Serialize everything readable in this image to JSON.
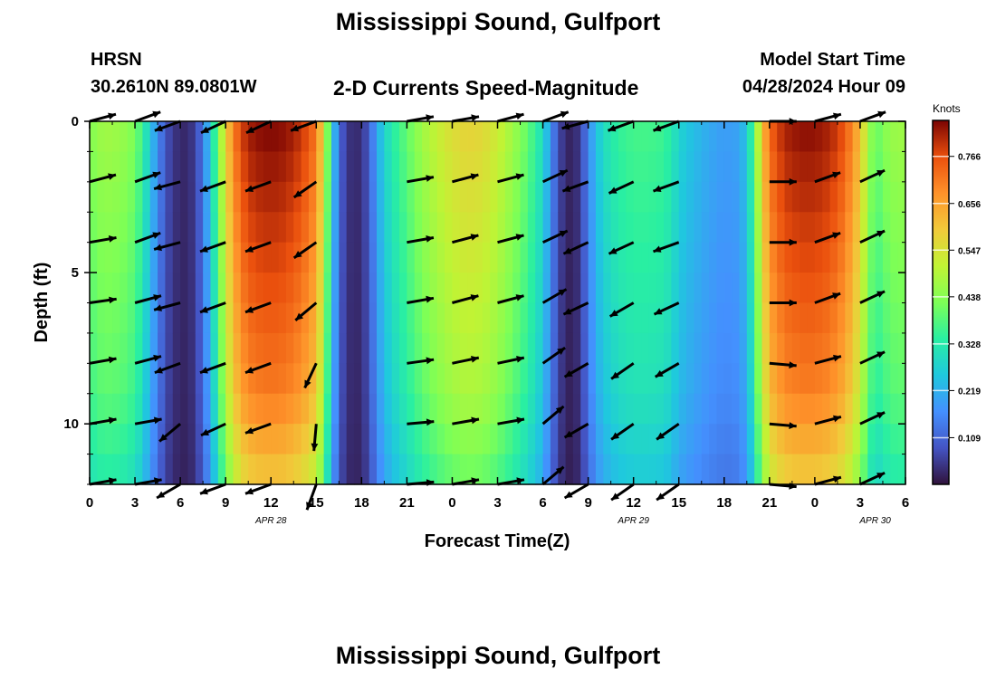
{
  "header": {
    "title": "Mississippi Sound, Gulfport",
    "bottom_title": "Mississippi Sound, Gulfport",
    "model": "HRSN",
    "coords": "30.2610N  89.0801W",
    "subtitle": "2-D Currents Speed-Magnitude",
    "start_label": "Model Start Time",
    "start_value": "04/28/2024 Hour 09"
  },
  "chart_data": {
    "type": "heatmap",
    "title": "2-D Currents Speed-Magnitude",
    "xlabel": "Forecast Time(Z)",
    "ylabel": "Depth (ft)",
    "x_range_hours": [
      0,
      54
    ],
    "x_tick_labels": [
      "0",
      "3",
      "6",
      "9",
      "12",
      "15",
      "18",
      "21",
      "0",
      "3",
      "6",
      "9",
      "12",
      "15",
      "18",
      "21",
      "0",
      "3",
      "6"
    ],
    "date_labels": [
      {
        "label": "APR 28",
        "hour": 12
      },
      {
        "label": "APR 29",
        "hour": 36
      },
      {
        "label": "APR 30",
        "hour": 52
      }
    ],
    "y_range_ft": [
      0,
      12
    ],
    "y_tick_labels": [
      "0",
      "5",
      "10"
    ],
    "y_ticks": [
      0,
      5,
      10
    ],
    "colorbar": {
      "unit": "Knots",
      "min": 0.0,
      "max": 0.85,
      "tick_labels": [
        "0.766",
        "0.656",
        "0.547",
        "0.438",
        "0.328",
        "0.219",
        "0.109"
      ],
      "tick_values": [
        0.766,
        0.656,
        0.547,
        0.438,
        0.328,
        0.219,
        0.109
      ]
    },
    "speed_profile_knots": [
      [
        0,
        0.43
      ],
      [
        0.5,
        0.46
      ],
      [
        1,
        0.47
      ],
      [
        1.5,
        0.47
      ],
      [
        2,
        0.46
      ],
      [
        2.5,
        0.45
      ],
      [
        3,
        0.42
      ],
      [
        3.5,
        0.36
      ],
      [
        4,
        0.26
      ],
      [
        4.5,
        0.17
      ],
      [
        5,
        0.09
      ],
      [
        5.5,
        0.05
      ],
      [
        6,
        0.03
      ],
      [
        6.5,
        0.03
      ],
      [
        7,
        0.06
      ],
      [
        7.5,
        0.14
      ],
      [
        8,
        0.27
      ],
      [
        8.5,
        0.42
      ],
      [
        9,
        0.58
      ],
      [
        9.5,
        0.7
      ],
      [
        10,
        0.78
      ],
      [
        10.5,
        0.82
      ],
      [
        11,
        0.84
      ],
      [
        12,
        0.85
      ],
      [
        13,
        0.84
      ],
      [
        14,
        0.8
      ],
      [
        15,
        0.72
      ],
      [
        15.5,
        0.55
      ],
      [
        16,
        0.3
      ],
      [
        16.5,
        0.12
      ],
      [
        17,
        0.05
      ],
      [
        17.5,
        0.03
      ],
      [
        18,
        0.04
      ],
      [
        18.5,
        0.1
      ],
      [
        19,
        0.2
      ],
      [
        19.5,
        0.28
      ],
      [
        20,
        0.33
      ],
      [
        21,
        0.4
      ],
      [
        22,
        0.47
      ],
      [
        23,
        0.52
      ],
      [
        24,
        0.56
      ],
      [
        25,
        0.58
      ],
      [
        26,
        0.57
      ],
      [
        27,
        0.53
      ],
      [
        28,
        0.47
      ],
      [
        29,
        0.4
      ],
      [
        30,
        0.3
      ],
      [
        30.5,
        0.18
      ],
      [
        31,
        0.08
      ],
      [
        31.5,
        0.03
      ],
      [
        32,
        0.02
      ],
      [
        32.5,
        0.06
      ],
      [
        33,
        0.16
      ],
      [
        33.5,
        0.24
      ],
      [
        34,
        0.3
      ],
      [
        35,
        0.35
      ],
      [
        36,
        0.37
      ],
      [
        37,
        0.37
      ],
      [
        38,
        0.36
      ],
      [
        38.5,
        0.33
      ],
      [
        39,
        0.28
      ],
      [
        40,
        0.24
      ],
      [
        41,
        0.21
      ],
      [
        42,
        0.19
      ],
      [
        43,
        0.2
      ],
      [
        43.5,
        0.26
      ],
      [
        44,
        0.4
      ],
      [
        44.5,
        0.6
      ],
      [
        45,
        0.74
      ],
      [
        46,
        0.82
      ],
      [
        47,
        0.84
      ],
      [
        48,
        0.84
      ],
      [
        49,
        0.82
      ],
      [
        50,
        0.76
      ],
      [
        51,
        0.62
      ],
      [
        51.5,
        0.48
      ],
      [
        52,
        0.4
      ],
      [
        52.5,
        0.43
      ],
      [
        53,
        0.46
      ],
      [
        54,
        0.47
      ]
    ],
    "depth_levels_ft": [
      0,
      2,
      4,
      6,
      8,
      10,
      12
    ],
    "current_vectors": [
      {
        "hour": 0,
        "dirs_deg": [
          15,
          15,
          10,
          8,
          10,
          10,
          10
        ]
      },
      {
        "hour": 3,
        "dirs_deg": [
          20,
          20,
          20,
          15,
          15,
          10,
          10
        ]
      },
      {
        "hour": 6,
        "dirs_deg": [
          -160,
          -165,
          -165,
          -165,
          -160,
          -140,
          -150
        ]
      },
      {
        "hour": 9,
        "dirs_deg": [
          -155,
          -160,
          -160,
          -160,
          -160,
          -155,
          -160
        ]
      },
      {
        "hour": 12,
        "dirs_deg": [
          -155,
          -160,
          -160,
          -160,
          -160,
          -160,
          -160
        ]
      },
      {
        "hour": 15,
        "dirs_deg": [
          -160,
          -145,
          -145,
          -140,
          -115,
          -95,
          -110
        ]
      },
      {
        "hour": 21,
        "dirs_deg": [
          10,
          10,
          10,
          10,
          8,
          5,
          5
        ]
      },
      {
        "hour": 24,
        "dirs_deg": [
          10,
          15,
          15,
          15,
          12,
          10,
          10
        ]
      },
      {
        "hour": 27,
        "dirs_deg": [
          15,
          15,
          15,
          15,
          12,
          10,
          10
        ]
      },
      {
        "hour": 30,
        "dirs_deg": [
          20,
          25,
          25,
          30,
          35,
          40,
          40
        ]
      },
      {
        "hour": 33,
        "dirs_deg": [
          -165,
          -160,
          -155,
          -155,
          -150,
          -150,
          -150
        ]
      },
      {
        "hour": 36,
        "dirs_deg": [
          -160,
          -155,
          -155,
          -150,
          -145,
          -145,
          -145
        ]
      },
      {
        "hour": 39,
        "dirs_deg": [
          -160,
          -160,
          -160,
          -155,
          -150,
          -145,
          -145
        ]
      },
      {
        "hour": 45,
        "dirs_deg": [
          0,
          0,
          0,
          0,
          -5,
          -5,
          -5
        ]
      },
      {
        "hour": 48,
        "dirs_deg": [
          15,
          20,
          20,
          20,
          15,
          15,
          15
        ]
      },
      {
        "hour": 51,
        "dirs_deg": [
          20,
          25,
          25,
          25,
          25,
          25,
          25
        ]
      }
    ]
  }
}
